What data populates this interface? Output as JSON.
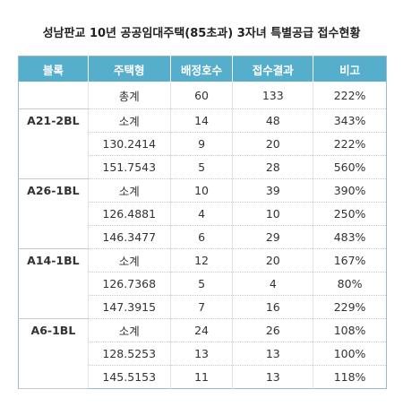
{
  "title": "성남판교 10년 공공임대주택(85초과) 3자녀 특별공급 접수현황",
  "table": {
    "header": [
      "블록",
      "주택형",
      "배정호수",
      "접수결과",
      "비고"
    ],
    "total": {
      "label": "총계",
      "allocated": 60,
      "received": 133,
      "note": "222%"
    },
    "groups": [
      {
        "block": "A21-2BL",
        "rows": [
          [
            "소계",
            14,
            48,
            "343%"
          ],
          [
            "130.2414",
            9,
            20,
            "222%"
          ],
          [
            "151.7543",
            5,
            28,
            "560%"
          ]
        ]
      },
      {
        "block": "A26-1BL",
        "rows": [
          [
            "소계",
            10,
            39,
            "390%"
          ],
          [
            "126.4881",
            4,
            10,
            "250%"
          ],
          [
            "146.3477",
            6,
            29,
            "483%"
          ]
        ]
      },
      {
        "block": "A14-1BL",
        "rows": [
          [
            "소계",
            12,
            20,
            "167%"
          ],
          [
            "126.7368",
            5,
            4,
            "80%"
          ],
          [
            "147.3915",
            7,
            16,
            "229%"
          ]
        ]
      },
      {
        "block": "A6-1BL",
        "rows": [
          [
            "소계",
            24,
            26,
            "108%"
          ],
          [
            "128.5253",
            13,
            13,
            "100%"
          ],
          [
            "145.5153",
            11,
            13,
            "118%"
          ]
        ]
      }
    ]
  }
}
